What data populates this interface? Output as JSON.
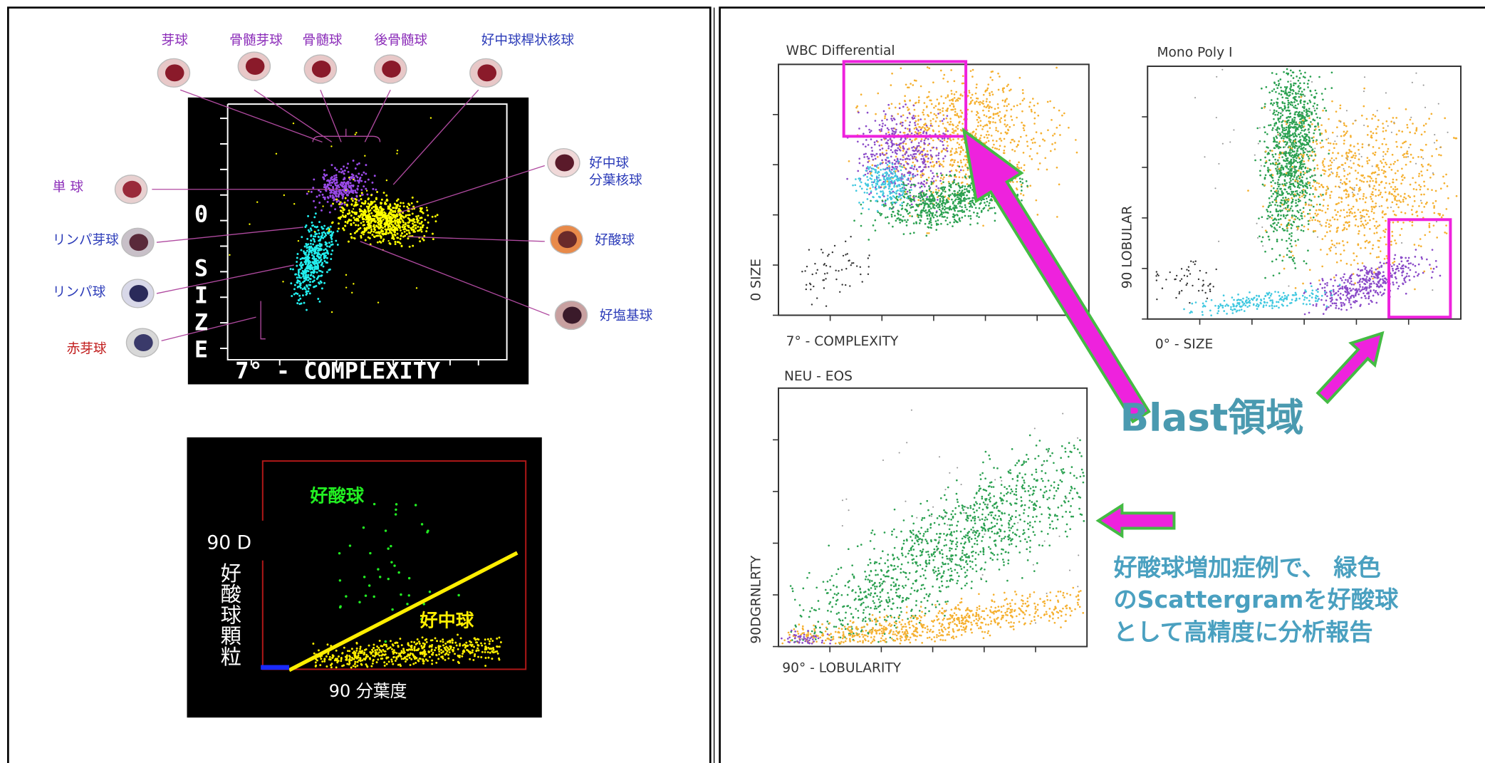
{
  "left_top": {
    "top_labels": [
      "芽球",
      "骨髄芽球",
      "骨髄球",
      "後骨髄球",
      "好中球桿状核球"
    ],
    "neutrophil_segmented": [
      "好中球",
      "分葉核球"
    ],
    "eosinophil": "好酸球",
    "basophil": "好塩基球",
    "left_labels": [
      "単 球",
      "リンパ芽球",
      "リンパ球",
      "赤芽球"
    ],
    "y_axis": "0 SIZE",
    "x_axis": "7° - COMPLEXITY"
  },
  "left_bottom": {
    "eosinophil": "好酸球",
    "neutrophil": "好中球",
    "y_axis_top": "90 D",
    "y_axis": "好酸球顆粒",
    "x_axis": "90 分葉度"
  },
  "right": {
    "plots": [
      {
        "title": "WBC Differential",
        "y_axis": "0 SIZE",
        "x_axis": "7° - COMPLEXITY"
      },
      {
        "title": "Mono Poly I",
        "y_axis": "90 LOBULAR",
        "x_axis": "0° - SIZE"
      },
      {
        "title": "NEU - EOS",
        "y_axis": "90DGRNLRTY",
        "x_axis": "90° - LOBULARITY"
      }
    ],
    "blast_label": "Blast領域",
    "note": [
      "好酸球増加症例で、 緑色",
      "のScattergramを好酸球",
      "として高精度に分析報告"
    ]
  }
}
